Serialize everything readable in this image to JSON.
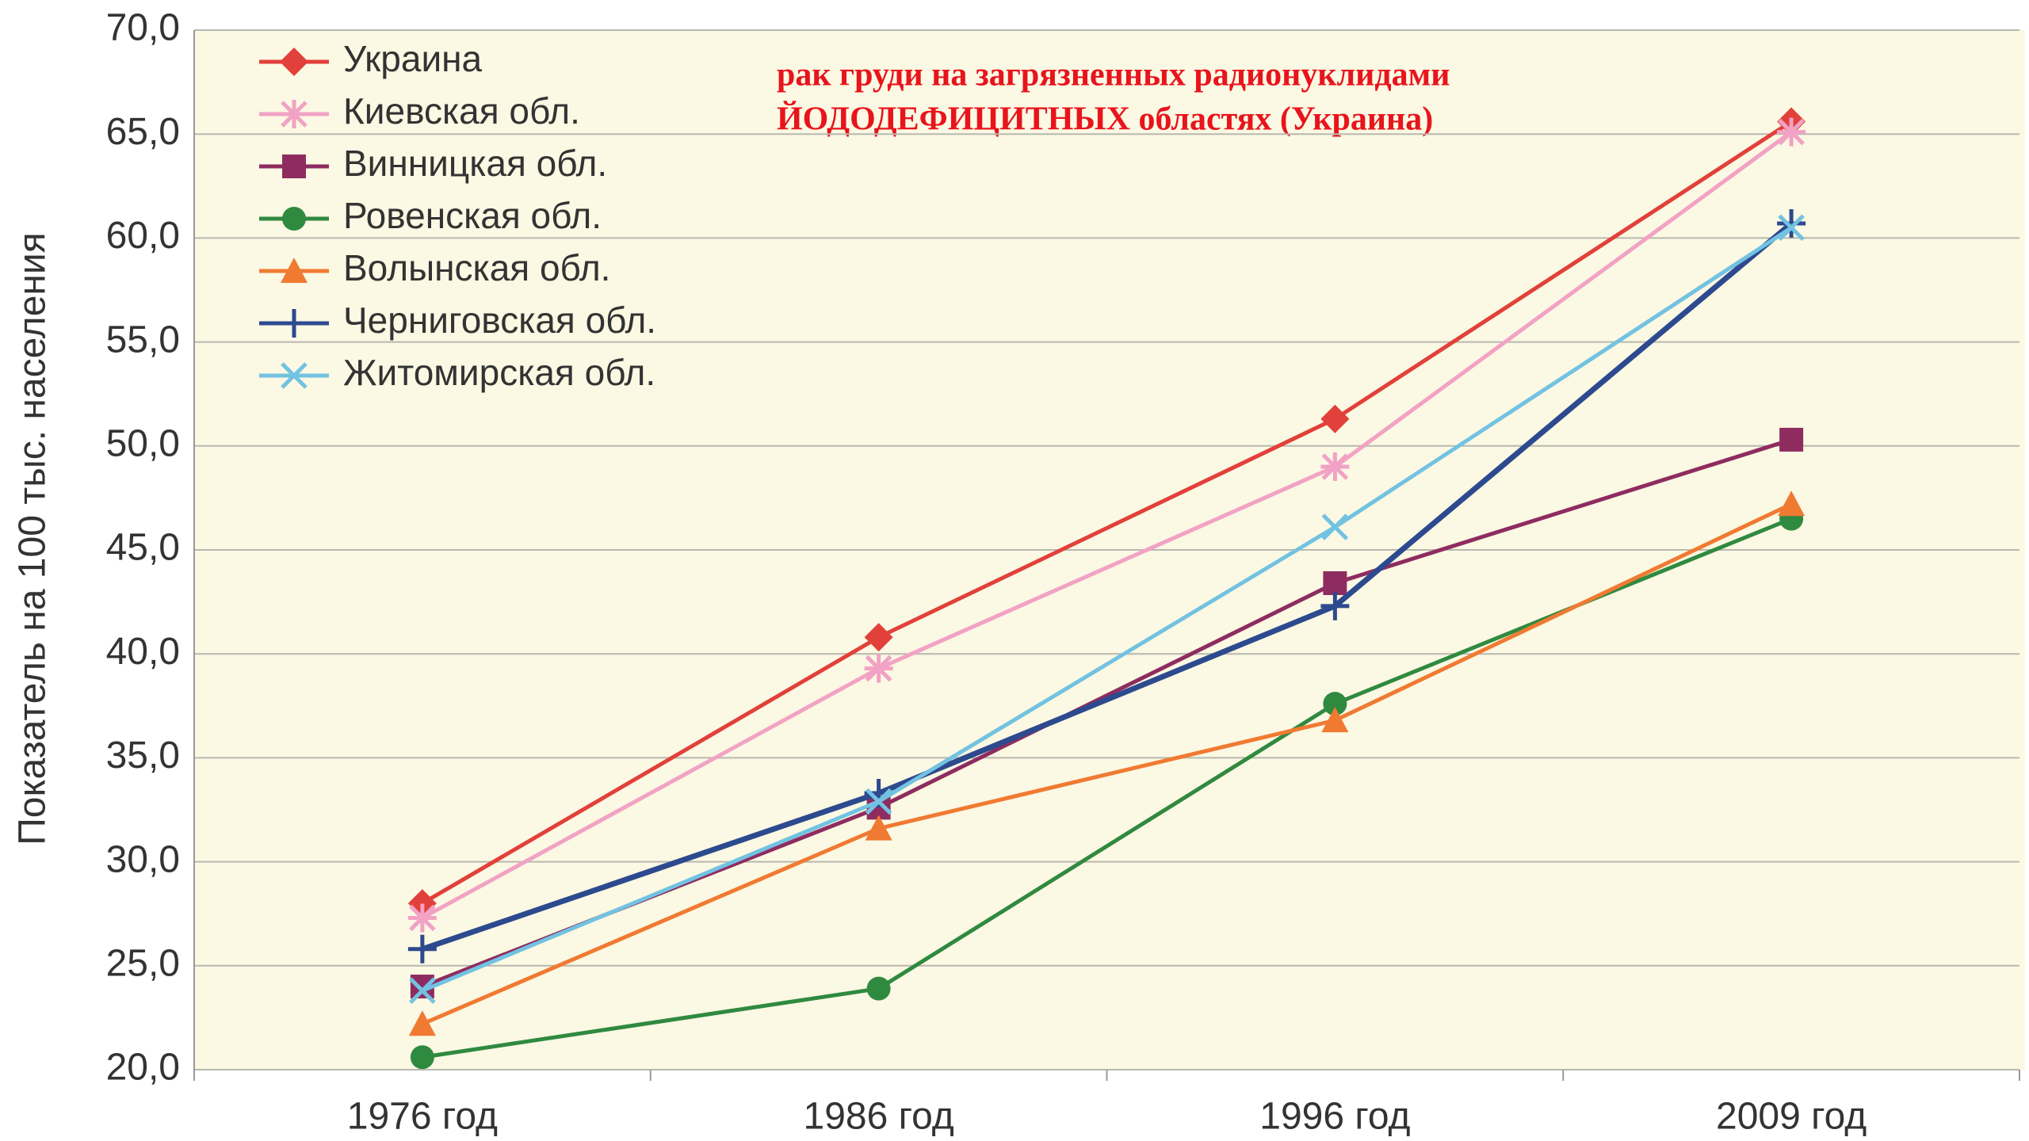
{
  "chart_data": {
    "type": "line",
    "title": [
      "рак груди на загрязненных радионуклидами",
      "ЙОДОДЕФИЦИТНЫХ областях (Украина)"
    ],
    "y_label": "Показатель на 100 тыс. населения",
    "categories": [
      "1976 год",
      "1986 год",
      "1996 год",
      "2009 год"
    ],
    "series": [
      {
        "name": "Украина",
        "color": "#e2403a",
        "marker": "diamond",
        "values": [
          28.0,
          40.8,
          51.3,
          65.6
        ]
      },
      {
        "name": "Киевская обл.",
        "color": "#f2a2c4",
        "marker": "asterisk",
        "values": [
          27.3,
          39.3,
          49.0,
          65.1
        ]
      },
      {
        "name": "Винницкая обл.",
        "color": "#8e2c60",
        "marker": "square",
        "values": [
          24.0,
          32.6,
          43.4,
          50.3
        ]
      },
      {
        "name": "Ровенская обл.",
        "color": "#2f8a40",
        "marker": "circle",
        "values": [
          20.6,
          23.9,
          37.6,
          46.5
        ]
      },
      {
        "name": "Волынская обл.",
        "color": "#f07a32",
        "marker": "triangle",
        "values": [
          22.2,
          31.6,
          36.8,
          47.2
        ]
      },
      {
        "name": "Черниговская обл.",
        "color": "#2d4a8f",
        "marker": "plus",
        "values": [
          25.8,
          33.3,
          42.3,
          60.7
        ]
      },
      {
        "name": "Житомирская обл.",
        "color": "#72c2e2",
        "marker": "cross",
        "values": [
          23.8,
          32.9,
          46.1,
          60.5
        ]
      }
    ],
    "ylim": [
      20,
      70
    ],
    "yticks": [
      {
        "value": 20,
        "label": "20,0"
      },
      {
        "value": 25,
        "label": "25,0"
      },
      {
        "value": 30,
        "label": "30,0"
      },
      {
        "value": 35,
        "label": "35,0"
      },
      {
        "value": 40,
        "label": "40,0"
      },
      {
        "value": 45,
        "label": "45,0"
      },
      {
        "value": 50,
        "label": "50,0"
      },
      {
        "value": 55,
        "label": "55,0"
      },
      {
        "value": 60,
        "label": "60,0"
      },
      {
        "value": 65,
        "label": "65,0"
      },
      {
        "value": 70,
        "label": "70,0"
      }
    ],
    "grid": true,
    "legend": "upper left"
  }
}
